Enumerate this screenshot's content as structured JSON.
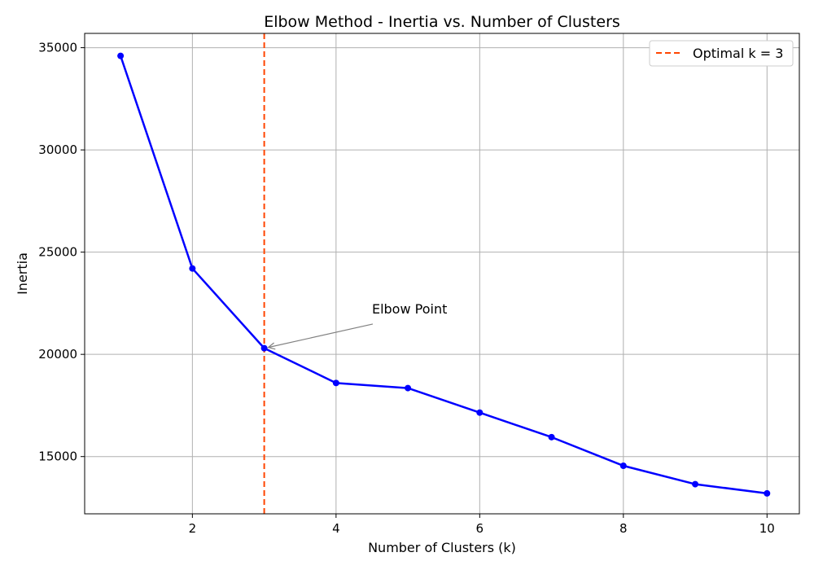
{
  "chart_data": {
    "type": "line",
    "title": "Elbow Method - Inertia vs. Number of Clusters",
    "xlabel": "Number of Clusters (k)",
    "ylabel": "Inertia",
    "xlim": [
      0.5,
      10.45
    ],
    "ylim": [
      12200,
      35700
    ],
    "xticks": [
      2,
      4,
      6,
      8,
      10
    ],
    "yticks": [
      15000,
      20000,
      25000,
      30000,
      35000
    ],
    "grid": true,
    "series": [
      {
        "name": "",
        "color": "#0000ff",
        "marker": "circle",
        "x": [
          1,
          2,
          3,
          4,
          5,
          6,
          7,
          8,
          9,
          10
        ],
        "y": [
          34600,
          24200,
          20300,
          18600,
          18350,
          17150,
          15950,
          14550,
          13650,
          13200
        ]
      }
    ],
    "reference_line": {
      "orientation": "vertical",
      "x": 3,
      "style": "dashed",
      "color": "#ff4500",
      "label": "Optimal k = 3"
    },
    "annotation": {
      "text": "Elbow Point",
      "target": [
        3,
        20300
      ],
      "text_at": [
        4.5,
        22000
      ],
      "arrow_color": "#808080"
    },
    "legend": {
      "position": "top-right",
      "entries": [
        "Optimal k = 3"
      ]
    }
  }
}
